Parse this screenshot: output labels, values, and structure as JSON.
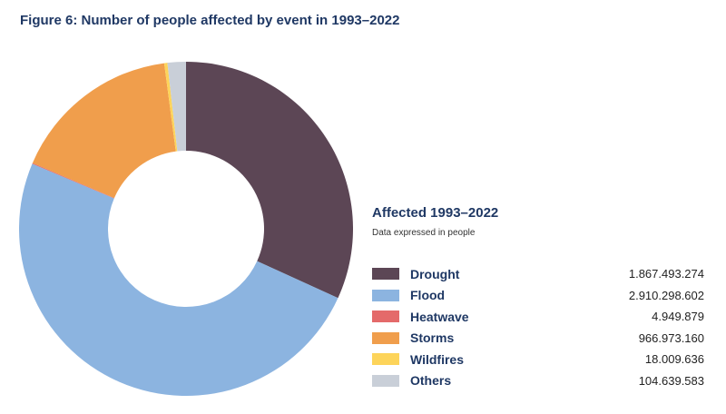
{
  "figure_title": "Figure 6: Number of people affected by event in 1993–2022",
  "chart_data": {
    "type": "pie",
    "variant": "donut",
    "title": "Affected 1993–2022",
    "subtitle": "Data expressed in people",
    "legend_position": "right",
    "categories": [
      "Drought",
      "Flood",
      "Heatwave",
      "Storms",
      "Wildfires",
      "Others"
    ],
    "values": [
      1867493274,
      2910298602,
      4949879,
      966973160,
      18009636,
      104639583
    ],
    "value_labels": [
      "1.867.493.274",
      "2.910.298.602",
      "4.949.879",
      "966.973.160",
      "18.009.636",
      "104.639.583"
    ],
    "colors": [
      "#5c4655",
      "#8cb4e0",
      "#e46a6a",
      "#f09e4c",
      "#fdd45a",
      "#c9cfd8"
    ]
  }
}
